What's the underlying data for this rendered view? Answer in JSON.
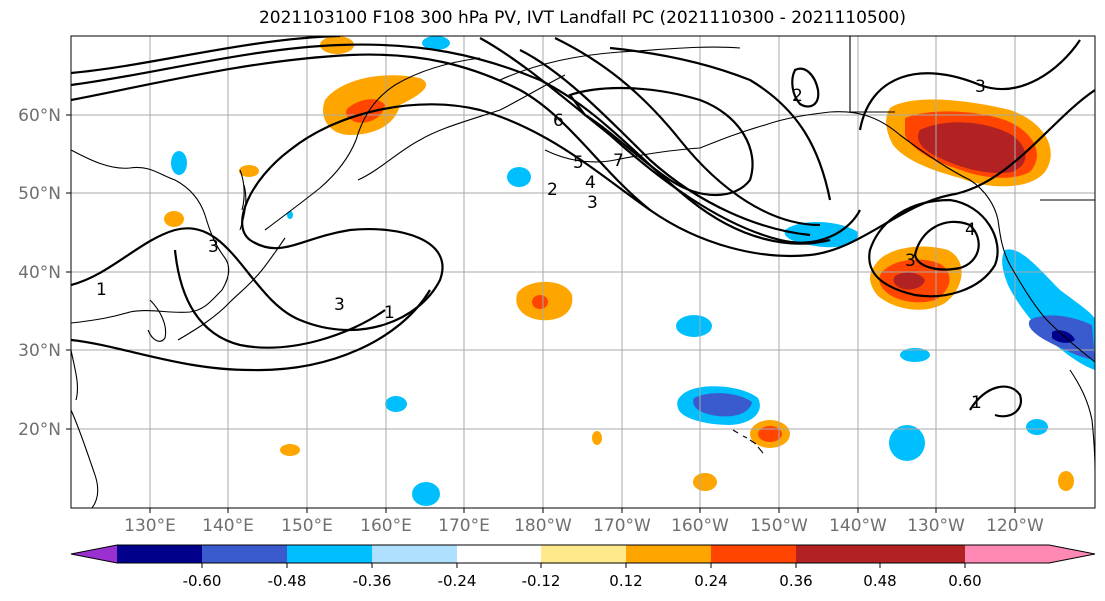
{
  "title": "2021103100 F108 300 hPa PV, IVT Landfall PC (2021110300 - 2021110500)",
  "map": {
    "lat_labels": [
      "60°N",
      "50°N",
      "40°N",
      "30°N",
      "20°N"
    ],
    "lon_labels": [
      "130°E",
      "140°E",
      "150°E",
      "160°E",
      "170°E",
      "180°W",
      "170°W",
      "160°W",
      "150°W",
      "140°W",
      "130°W",
      "120°W"
    ],
    "contour_labels": [
      "1",
      "2",
      "3",
      "4",
      "5",
      "6",
      "7"
    ]
  },
  "colorbar": {
    "ticks": [
      "-0.60",
      "-0.48",
      "-0.36",
      "-0.24",
      "-0.12",
      "0.12",
      "0.24",
      "0.36",
      "0.48",
      "0.60"
    ],
    "colors": [
      "#9b30d0",
      "#00008b",
      "#3a5bcd",
      "#00bfff",
      "#b0e0ff",
      "#ffffff",
      "#ffe98a",
      "#ffa500",
      "#ff4500",
      "#b22222",
      "#ff88b4"
    ]
  }
}
